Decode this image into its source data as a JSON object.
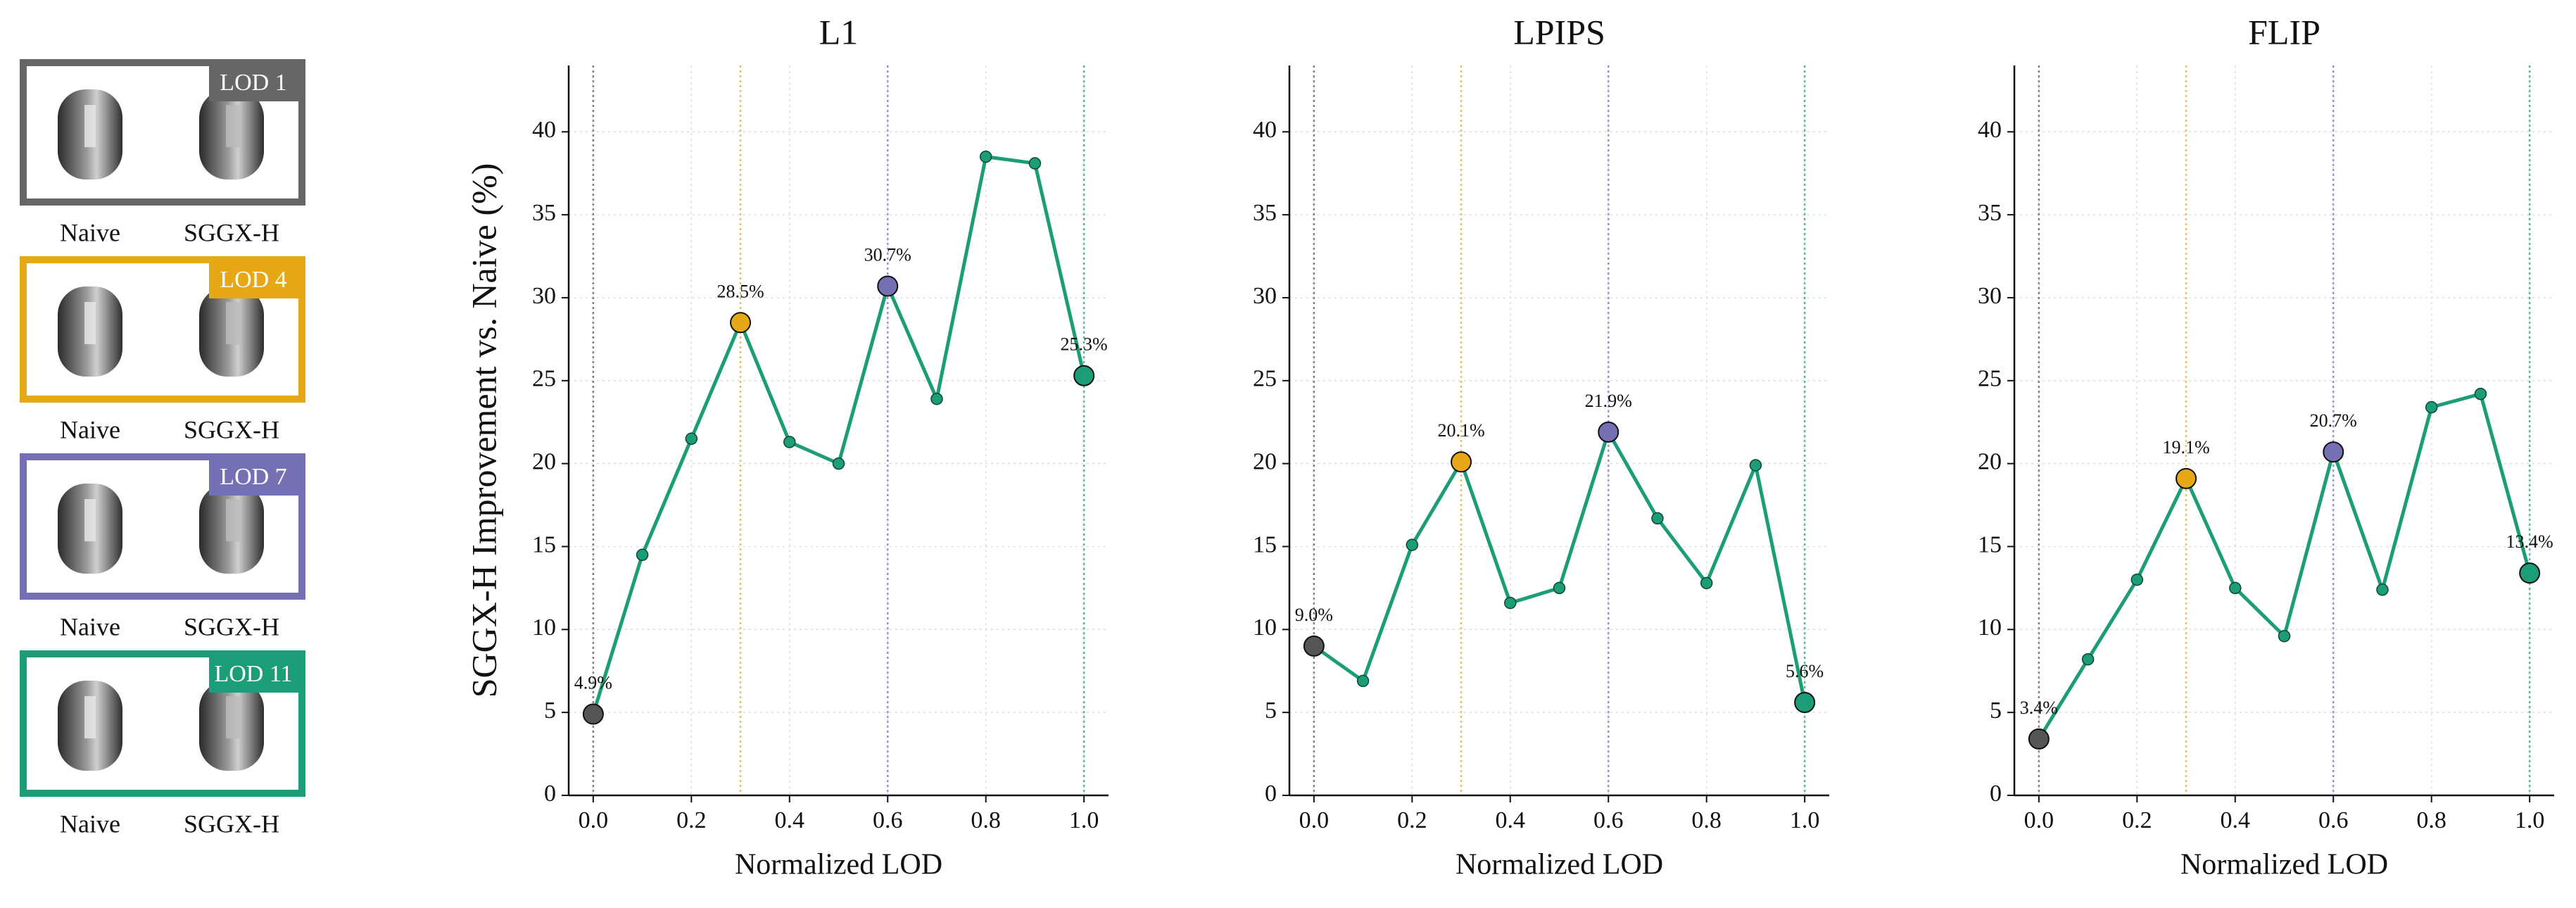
{
  "lod_panels": [
    {
      "label": "LOD 1",
      "color": "#666666",
      "left": "Naive",
      "right": "SGGX-H"
    },
    {
      "label": "LOD 4",
      "color": "#e6a817",
      "left": "Naive",
      "right": "SGGX-H"
    },
    {
      "label": "LOD 7",
      "color": "#7570b3",
      "left": "Naive",
      "right": "SGGX-H"
    },
    {
      "label": "LOD 11",
      "color": "#1b9e77",
      "left": "Naive",
      "right": "SGGX-H"
    }
  ],
  "chart_data": [
    {
      "type": "line",
      "title": "L1",
      "x_label": "Normalized LOD",
      "y_label": "SGGX-H Improvement vs. Naive (%)",
      "x": [
        0,
        0.1,
        0.2,
        0.3,
        0.4,
        0.5,
        0.6,
        0.7,
        0.8,
        0.9,
        1.0
      ],
      "values": [
        4.9,
        14.5,
        21.5,
        28.5,
        21.3,
        20.0,
        30.7,
        23.9,
        38.5,
        38.1,
        25.3
      ],
      "color": "#1b9e77",
      "highlight": {
        "x": [
          0,
          0.3,
          0.6,
          1.0
        ],
        "values": [
          4.9,
          28.5,
          30.7,
          25.3
        ],
        "value_labels": [
          "4.9%",
          "28.5%",
          "30.7%",
          "25.3%"
        ],
        "colors": [
          "#555555",
          "#e6a817",
          "#7570b3",
          "#1b9e77"
        ]
      },
      "xlim": [
        -0.05,
        1.05
      ],
      "xticks": [
        {
          "value": 0,
          "label": "0.0"
        },
        0.2,
        0.4,
        0.6,
        0.8,
        {
          "value": 1,
          "label": "1.0"
        }
      ],
      "ylim": [
        0,
        44
      ],
      "yticks": [
        0,
        5,
        10,
        15,
        20,
        25,
        30,
        35,
        40
      ],
      "grid": true
    },
    {
      "type": "line",
      "title": "LPIPS",
      "x_label": "Normalized LOD",
      "x": [
        0,
        0.1,
        0.2,
        0.3,
        0.4,
        0.5,
        0.6,
        0.7,
        0.8,
        0.9,
        1.0
      ],
      "values": [
        9.0,
        6.9,
        15.1,
        20.1,
        11.6,
        12.5,
        21.9,
        16.7,
        12.8,
        19.9,
        5.6
      ],
      "color": "#1b9e77",
      "highlight": {
        "x": [
          0,
          0.3,
          0.6,
          1.0
        ],
        "values": [
          9.0,
          20.1,
          21.9,
          5.6
        ],
        "value_labels": [
          "9.0%",
          "20.1%",
          "21.9%",
          "5.6%"
        ],
        "colors": [
          "#555555",
          "#e6a817",
          "#7570b3",
          "#1b9e77"
        ]
      },
      "xlim": [
        -0.05,
        1.05
      ],
      "xticks": [
        {
          "value": 0,
          "label": "0.0"
        },
        0.2,
        0.4,
        0.6,
        0.8,
        {
          "value": 1,
          "label": "1.0"
        }
      ],
      "ylim": [
        0,
        44
      ],
      "yticks": [
        0,
        5,
        10,
        15,
        20,
        25,
        30,
        35,
        40
      ],
      "grid": true
    },
    {
      "type": "line",
      "title": "FLIP",
      "x_label": "Normalized LOD",
      "x": [
        0,
        0.1,
        0.2,
        0.3,
        0.4,
        0.5,
        0.6,
        0.7,
        0.8,
        0.9,
        1.0
      ],
      "values": [
        3.4,
        8.2,
        13.0,
        19.1,
        12.5,
        9.6,
        20.7,
        12.4,
        23.4,
        24.2,
        13.4
      ],
      "color": "#1b9e77",
      "highlight": {
        "x": [
          0,
          0.3,
          0.6,
          1.0
        ],
        "values": [
          3.4,
          19.1,
          20.7,
          13.4
        ],
        "value_labels": [
          "3.4%",
          "19.1%",
          "20.7%",
          "13.4%"
        ],
        "colors": [
          "#555555",
          "#e6a817",
          "#7570b3",
          "#1b9e77"
        ]
      },
      "xlim": [
        -0.05,
        1.05
      ],
      "xticks": [
        {
          "value": 0,
          "label": "0.0"
        },
        0.2,
        0.4,
        0.6,
        0.8,
        {
          "value": 1,
          "label": "1.0"
        }
      ],
      "ylim": [
        0,
        44
      ],
      "yticks": [
        0,
        5,
        10,
        15,
        20,
        25,
        30,
        35,
        40
      ],
      "grid": true
    }
  ]
}
